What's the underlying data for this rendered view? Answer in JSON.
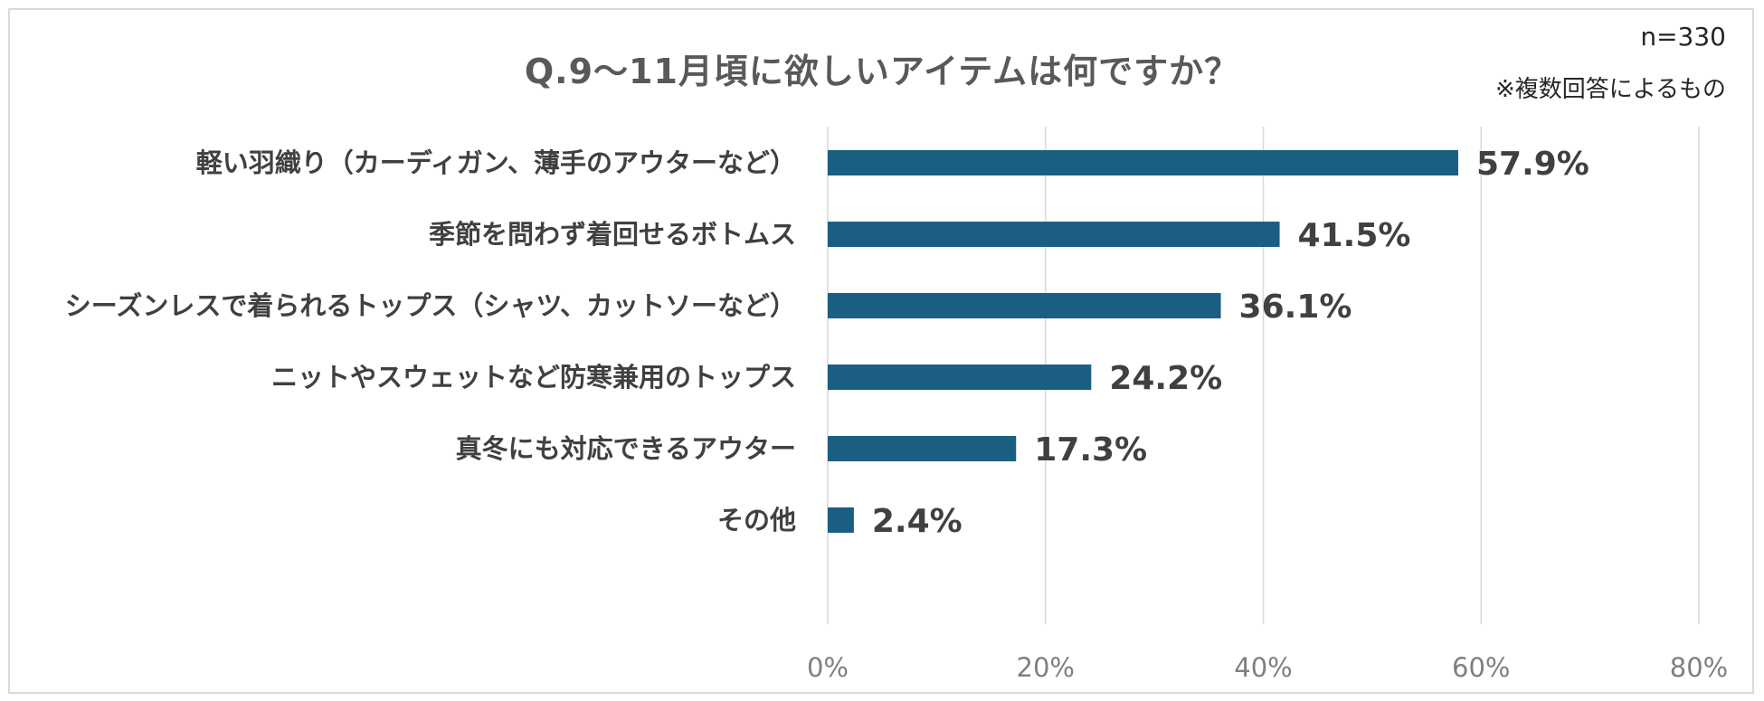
{
  "chart_data": {
    "type": "bar",
    "orientation": "horizontal",
    "title": "Q.9～11月頃に欲しいアイテムは何ですか？",
    "sample_size": "n=330",
    "note": "※複数回答によるもの",
    "categories": [
      "軽い羽織り（カーディガン、薄手のアウターなど）",
      "季節を問わず着回せるボトムス",
      "シーズンレスで着られるトップス（シャツ、カットソーなど）",
      "ニットやスウェットなど防寒兼用のトップス",
      "真冬にも対応できるアウター",
      "その他"
    ],
    "values": [
      57.9,
      41.5,
      36.1,
      24.2,
      17.3,
      2.4
    ],
    "value_labels": [
      "57.9%",
      "41.5%",
      "36.1%",
      "24.2%",
      "17.3%",
      "2.4%"
    ],
    "xlim": [
      0,
      80
    ],
    "x_ticks": [
      0,
      20,
      40,
      60,
      80
    ],
    "x_tick_labels": [
      "0%",
      "20%",
      "40%",
      "60%",
      "80%"
    ],
    "grid": "vertical",
    "legend": "none",
    "bar_color": "#1a5e82",
    "grid_color": "#d9d9d9"
  }
}
